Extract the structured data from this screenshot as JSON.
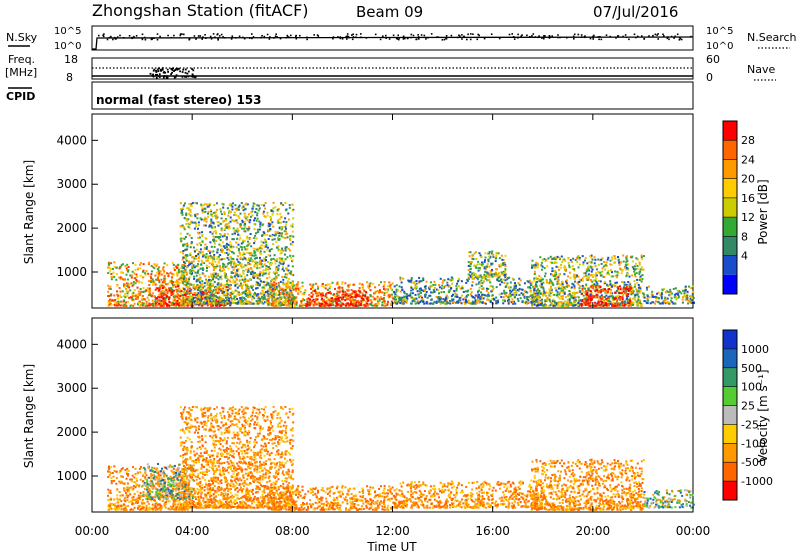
{
  "header": {
    "station": "Zhongshan Station (fitACF)",
    "beam": "Beam 09",
    "date": "07/Jul/2016"
  },
  "top_panels": {
    "noise": {
      "left_label": "N.Sky",
      "right_label": "N.Search",
      "left_ticks": [
        "10^5",
        "10^0"
      ],
      "right_ticks": [
        "10^5",
        "10^0"
      ]
    },
    "freq": {
      "left_label_1": "Freq.",
      "left_label_2": "[MHz]",
      "left_ticks": [
        "18",
        "8"
      ],
      "right_label": "Nave",
      "right_ticks": [
        "60",
        "0"
      ]
    },
    "cpid": {
      "label": "CPID",
      "value": "normal (fast stereo) 153"
    }
  },
  "axes": {
    "x_label": "Time UT",
    "x_ticks": [
      "00:00",
      "04:00",
      "08:00",
      "12:00",
      "16:00",
      "20:00",
      "00:00"
    ],
    "y_label_power": "Slant Range [km]",
    "y_label_velocity": "Slant Range [km]",
    "y_ticks": [
      "4000",
      "3000",
      "2000",
      "1000"
    ]
  },
  "colorbars": {
    "power": {
      "title": "Power [dB]",
      "labels": [
        "28",
        "24",
        "20",
        "16",
        "12",
        "8",
        "4"
      ],
      "colors": [
        "#ff0000",
        "#ff6600",
        "#ff9900",
        "#ffcc00",
        "#cccc00",
        "#33aa33",
        "#338866",
        "#1a4dcc",
        "#0000ff"
      ]
    },
    "velocity": {
      "title": "Velocity [m s⁻¹]",
      "labels": [
        "1000",
        "500",
        "100",
        "25",
        "-25",
        "-100",
        "-500",
        "-1000"
      ],
      "colors": [
        "#1133cc",
        "#1a66bb",
        "#339966",
        "#55cc33",
        "#bbbbbb",
        "#ffcc00",
        "#ff9900",
        "#ff6600",
        "#ff0000"
      ]
    }
  },
  "chart_data": {
    "type": "heatmap",
    "x_range_hours": [
      0,
      24
    ],
    "y_range_km": [
      180,
      4600
    ],
    "power_regions": [
      {
        "t0": 0.6,
        "t1": 3.8,
        "r0": 250,
        "r1": 1250,
        "level": "high"
      },
      {
        "t0": 2.5,
        "t1": 5.5,
        "r0": 250,
        "r1": 700,
        "level": "max"
      },
      {
        "t0": 3.5,
        "t1": 8.0,
        "r0": 300,
        "r1": 2600,
        "level": "mid"
      },
      {
        "t0": 7.0,
        "t1": 12.0,
        "r0": 250,
        "r1": 800,
        "level": "high"
      },
      {
        "t0": 8.5,
        "t1": 11.0,
        "r0": 250,
        "r1": 600,
        "level": "max"
      },
      {
        "t0": 12.0,
        "t1": 18.0,
        "r0": 300,
        "r1": 900,
        "level": "low"
      },
      {
        "t0": 15.0,
        "t1": 16.5,
        "r0": 900,
        "r1": 1500,
        "level": "mid"
      },
      {
        "t0": 17.5,
        "t1": 22.0,
        "r0": 250,
        "r1": 1400,
        "level": "mid"
      },
      {
        "t0": 19.5,
        "t1": 21.5,
        "r0": 250,
        "r1": 700,
        "level": "max"
      },
      {
        "t0": 22.0,
        "t1": 24.0,
        "r0": 300,
        "r1": 700,
        "level": "low"
      }
    ],
    "velocity_regions": [
      {
        "t0": 0.6,
        "t1": 3.8,
        "r0": 250,
        "r1": 1250,
        "level": "neg"
      },
      {
        "t0": 2.0,
        "t1": 4.0,
        "r0": 500,
        "r1": 1300,
        "level": "pos"
      },
      {
        "t0": 3.5,
        "t1": 8.0,
        "r0": 300,
        "r1": 2600,
        "level": "neg"
      },
      {
        "t0": 7.0,
        "t1": 12.0,
        "r0": 250,
        "r1": 800,
        "level": "neg"
      },
      {
        "t0": 12.0,
        "t1": 18.0,
        "r0": 300,
        "r1": 900,
        "level": "neg"
      },
      {
        "t0": 17.5,
        "t1": 22.0,
        "r0": 250,
        "r1": 1400,
        "level": "neg"
      },
      {
        "t0": 22.0,
        "t1": 24.0,
        "r0": 300,
        "r1": 700,
        "level": "pos"
      }
    ]
  }
}
